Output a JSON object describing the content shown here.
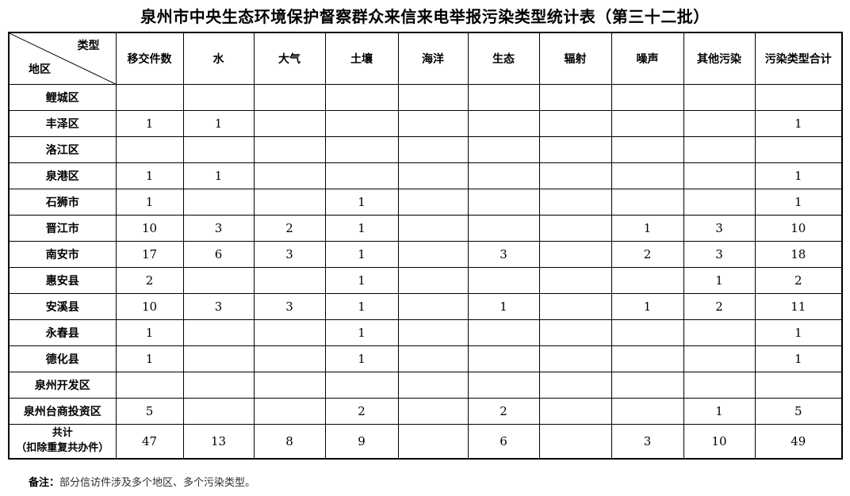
{
  "title": "泉州市中央生态环境保护督察群众来信来电举报污染类型统计表（第三十二批）",
  "table": {
    "corner": {
      "top_right": "类型",
      "bottom_left": "地区"
    },
    "headers": [
      "移交件数",
      "水",
      "大气",
      "土壤",
      "海洋",
      "生态",
      "辐射",
      "噪声",
      "其他污染",
      "污染类型合计"
    ],
    "rows": [
      {
        "region": "鲤城区",
        "values": [
          "",
          "",
          "",
          "",
          "",
          "",
          "",
          "",
          "",
          ""
        ]
      },
      {
        "region": "丰泽区",
        "values": [
          "1",
          "1",
          "",
          "",
          "",
          "",
          "",
          "",
          "",
          "1"
        ]
      },
      {
        "region": "洛江区",
        "values": [
          "",
          "",
          "",
          "",
          "",
          "",
          "",
          "",
          "",
          ""
        ]
      },
      {
        "region": "泉港区",
        "values": [
          "1",
          "1",
          "",
          "",
          "",
          "",
          "",
          "",
          "",
          "1"
        ]
      },
      {
        "region": "石狮市",
        "values": [
          "1",
          "",
          "",
          "1",
          "",
          "",
          "",
          "",
          "",
          "1"
        ]
      },
      {
        "region": "晋江市",
        "values": [
          "10",
          "3",
          "2",
          "1",
          "",
          "",
          "",
          "1",
          "3",
          "10"
        ]
      },
      {
        "region": "南安市",
        "values": [
          "17",
          "6",
          "3",
          "1",
          "",
          "3",
          "",
          "2",
          "3",
          "18"
        ]
      },
      {
        "region": "惠安县",
        "values": [
          "2",
          "",
          "",
          "1",
          "",
          "",
          "",
          "",
          "1",
          "2"
        ]
      },
      {
        "region": "安溪县",
        "values": [
          "10",
          "3",
          "3",
          "1",
          "",
          "1",
          "",
          "1",
          "2",
          "11"
        ]
      },
      {
        "region": "永春县",
        "values": [
          "1",
          "",
          "",
          "1",
          "",
          "",
          "",
          "",
          "",
          "1"
        ]
      },
      {
        "region": "德化县",
        "values": [
          "1",
          "",
          "",
          "1",
          "",
          "",
          "",
          "",
          "",
          "1"
        ]
      },
      {
        "region": "泉州开发区",
        "values": [
          "",
          "",
          "",
          "",
          "",
          "",
          "",
          "",
          "",
          ""
        ]
      },
      {
        "region": "泉州台商投资区",
        "values": [
          "5",
          "",
          "",
          "2",
          "",
          "2",
          "",
          "",
          "1",
          "5"
        ]
      },
      {
        "region": "共计\n（扣除重复共办件）",
        "values": [
          "47",
          "13",
          "8",
          "9",
          "",
          "6",
          "",
          "3",
          "10",
          "49"
        ],
        "is_total": true
      }
    ]
  },
  "note": {
    "label": "备注：",
    "text": "部分信访件涉及多个地区、多个污染类型。"
  }
}
